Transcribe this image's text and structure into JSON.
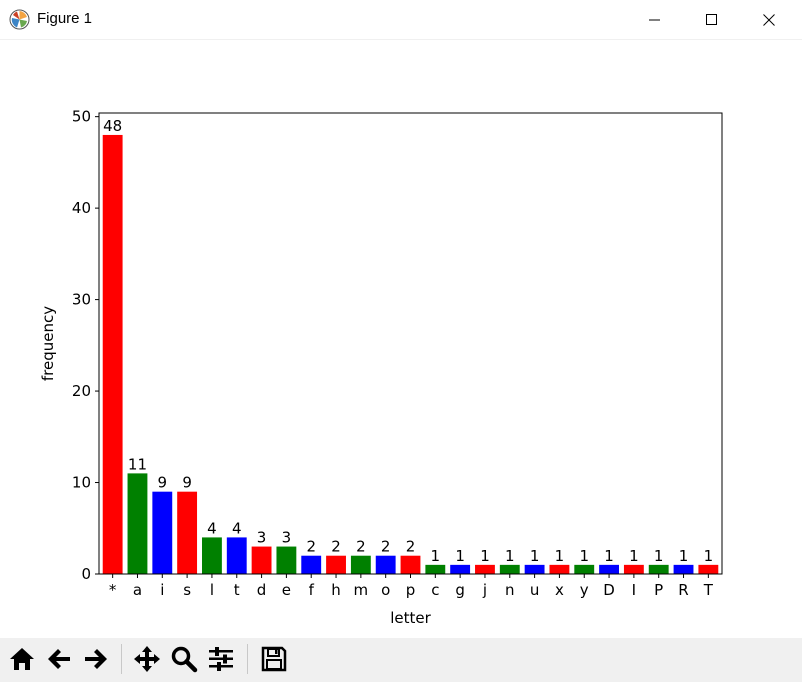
{
  "window": {
    "title": "Figure 1"
  },
  "toolbar": {
    "buttons": [
      {
        "icon": "home-icon"
      },
      {
        "icon": "back-arrow-icon"
      },
      {
        "icon": "forward-arrow-icon"
      },
      {
        "icon": "pan-icon"
      },
      {
        "icon": "zoom-icon"
      },
      {
        "icon": "configure-subplots-icon"
      },
      {
        "icon": "save-icon"
      }
    ]
  },
  "chart_data": {
    "type": "bar",
    "categories": [
      "*",
      "a",
      "i",
      "s",
      "l",
      "t",
      "d",
      "e",
      "f",
      "h",
      "m",
      "o",
      "p",
      "c",
      "g",
      "j",
      "n",
      "u",
      "x",
      "y",
      "D",
      "I",
      "P",
      "R",
      "T"
    ],
    "values": [
      48,
      11,
      9,
      9,
      4,
      4,
      3,
      3,
      2,
      2,
      2,
      2,
      2,
      1,
      1,
      1,
      1,
      1,
      1,
      1,
      1,
      1,
      1,
      1,
      1
    ],
    "colors": [
      "#ff0000",
      "#008000",
      "#0000ff",
      "#ff0000",
      "#008000",
      "#0000ff",
      "#ff0000",
      "#008000",
      "#0000ff",
      "#ff0000",
      "#008000",
      "#0000ff",
      "#ff0000",
      "#008000",
      "#0000ff",
      "#ff0000",
      "#008000",
      "#0000ff",
      "#ff0000",
      "#008000",
      "#0000ff",
      "#ff0000",
      "#008000",
      "#0000ff",
      "#ff0000"
    ],
    "xlabel": "letter",
    "ylabel": "frequency",
    "ylim": [
      0,
      50.4
    ],
    "yticks": [
      0,
      10,
      20,
      30,
      40,
      50
    ],
    "grid": false,
    "bar_labels": true
  }
}
